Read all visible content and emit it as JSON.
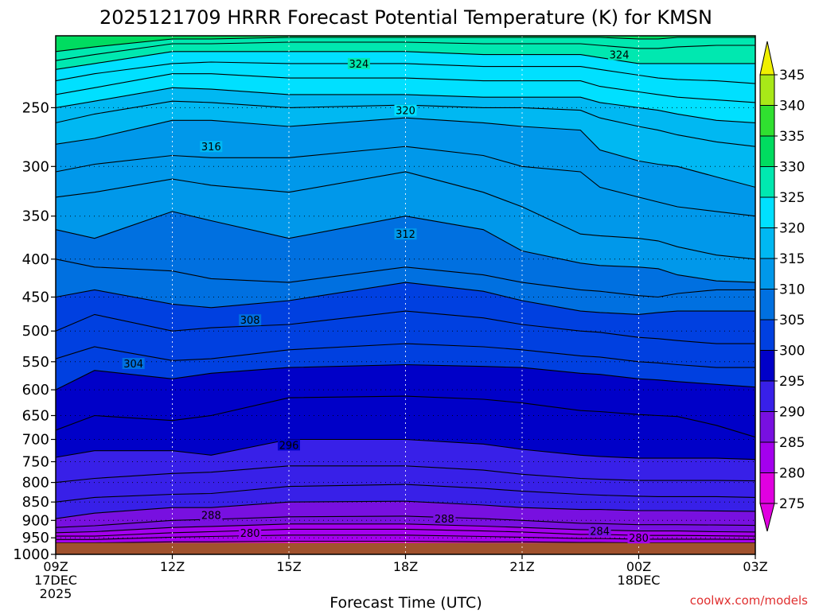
{
  "chart_data": {
    "type": "contour",
    "title": "2025121709 HRRR Forecast Potential Temperature (K) for KMSN",
    "xlabel": "Forecast Time (UTC)",
    "ylabel": "",
    "credit": "coolwx.com/models",
    "x_ticks": [
      {
        "hours": 0,
        "lines": [
          "09Z",
          "17DEC",
          "2025"
        ]
      },
      {
        "hours": 3,
        "lines": [
          "12Z"
        ]
      },
      {
        "hours": 6,
        "lines": [
          "15Z"
        ]
      },
      {
        "hours": 9,
        "lines": [
          "18Z"
        ]
      },
      {
        "hours": 12,
        "lines": [
          "21Z"
        ]
      },
      {
        "hours": 15,
        "lines": [
          "00Z",
          "18DEC"
        ]
      },
      {
        "hours": 18,
        "lines": [
          "03Z"
        ]
      }
    ],
    "xlim": [
      0,
      18
    ],
    "y_axis": "pressure (hPa, inverted)",
    "y_ticks": [
      250,
      300,
      350,
      400,
      450,
      500,
      550,
      600,
      650,
      700,
      750,
      800,
      850,
      900,
      950,
      1000
    ],
    "ylim": [
      1000,
      200
    ],
    "surface_pressure_hPa": 965,
    "colorbar": {
      "levels": [
        275,
        280,
        285,
        290,
        295,
        300,
        305,
        310,
        315,
        320,
        325,
        330,
        335,
        340,
        345
      ],
      "labels": [
        "345",
        "340",
        "335",
        "330",
        "325",
        "320",
        "315",
        "310",
        "305",
        "300",
        "295",
        "290",
        "285",
        "280",
        "275"
      ],
      "colors": [
        "#e000e0",
        "#a400ee",
        "#7810e0",
        "#3820e8",
        "#0000c8",
        "#0040e0",
        "#0070e0",
        "#0098ea",
        "#00b8f2",
        "#00e0ff",
        "#00e8b0",
        "#00dc60",
        "#30e030",
        "#a8e818",
        "#e8f000"
      ]
    },
    "isentropes_K": {
      "hours": [
        0,
        1,
        3,
        4,
        6,
        9,
        11,
        12,
        13.5,
        14,
        15,
        15.5,
        16,
        17,
        18
      ],
      "levels": [
        {
          "theta": 280,
          "p": [
            965,
            965,
            962,
            962,
            960,
            960,
            962,
            962,
            964,
            964,
            965,
            965,
            965,
            965,
            965
          ]
        },
        {
          "theta": 282,
          "p": [
            955,
            955,
            948,
            946,
            942,
            942,
            946,
            948,
            952,
            952,
            954,
            954,
            954,
            954,
            955
          ]
        },
        {
          "theta": 284,
          "p": [
            945,
            945,
            935,
            932,
            925,
            925,
            930,
            933,
            940,
            940,
            943,
            943,
            943,
            944,
            945
          ]
        },
        {
          "theta": 286,
          "p": [
            935,
            932,
            920,
            917,
            910,
            910,
            916,
            920,
            926,
            927,
            930,
            930,
            930,
            932,
            933
          ]
        },
        {
          "theta": 288,
          "p": [
            920,
            915,
            900,
            897,
            890,
            888,
            895,
            900,
            908,
            909,
            912,
            912,
            912,
            913,
            914
          ]
        },
        {
          "theta": 290,
          "p": [
            895,
            880,
            865,
            865,
            850,
            848,
            858,
            865,
            870,
            870,
            873,
            873,
            873,
            874,
            875
          ]
        },
        {
          "theta": 292,
          "p": [
            850,
            838,
            830,
            828,
            810,
            805,
            815,
            822,
            830,
            832,
            835,
            836,
            836,
            836,
            838
          ]
        },
        {
          "theta": 294,
          "p": [
            800,
            790,
            778,
            775,
            760,
            760,
            770,
            780,
            790,
            792,
            795,
            795,
            795,
            795,
            796
          ]
        },
        {
          "theta": 296,
          "p": [
            740,
            725,
            725,
            735,
            700,
            700,
            710,
            722,
            735,
            738,
            742,
            742,
            742,
            742,
            745
          ]
        },
        {
          "theta": 298,
          "p": [
            680,
            650,
            660,
            650,
            615,
            612,
            618,
            625,
            640,
            642,
            648,
            650,
            652,
            670,
            695
          ]
        },
        {
          "theta": 300,
          "p": [
            600,
            565,
            580,
            570,
            560,
            555,
            558,
            560,
            570,
            572,
            580,
            582,
            585,
            590,
            595
          ]
        },
        {
          "theta": 302,
          "p": [
            545,
            525,
            548,
            545,
            530,
            520,
            525,
            530,
            540,
            542,
            550,
            552,
            555,
            560,
            560
          ]
        },
        {
          "theta": 304,
          "p": [
            500,
            475,
            500,
            495,
            490,
            470,
            480,
            490,
            500,
            502,
            510,
            512,
            515,
            520,
            520
          ]
        },
        {
          "theta": 306,
          "p": [
            450,
            440,
            460,
            465,
            455,
            430,
            442,
            455,
            470,
            472,
            475,
            472,
            470,
            470,
            470
          ]
        },
        {
          "theta": 308,
          "p": [
            400,
            410,
            415,
            425,
            430,
            410,
            420,
            430,
            440,
            442,
            448,
            450,
            445,
            440,
            440
          ]
        },
        {
          "theta": 310,
          "p": [
            365,
            375,
            345,
            355,
            375,
            350,
            365,
            390,
            405,
            408,
            410,
            412,
            420,
            428,
            430
          ]
        },
        {
          "theta": 312,
          "p": [
            330,
            325,
            312,
            318,
            325,
            305,
            325,
            340,
            370,
            372,
            375,
            378,
            385,
            395,
            400
          ]
        },
        {
          "theta": 314,
          "p": [
            305,
            298,
            290,
            292,
            292,
            282,
            290,
            300,
            305,
            320,
            330,
            335,
            340,
            345,
            350
          ]
        },
        {
          "theta": 316,
          "p": [
            280,
            275,
            260,
            260,
            265,
            258,
            262,
            265,
            268,
            285,
            295,
            298,
            300,
            310,
            320
          ]
        },
        {
          "theta": 318,
          "p": [
            262,
            255,
            245,
            246,
            250,
            248,
            250,
            250,
            252,
            258,
            265,
            268,
            272,
            278,
            282
          ]
        },
        {
          "theta": 320,
          "p": [
            250,
            245,
            235,
            236,
            240,
            240,
            242,
            242,
            242,
            246,
            250,
            252,
            255,
            260,
            262
          ]
        },
        {
          "theta": 322,
          "p": [
            240,
            235,
            225,
            225,
            228,
            228,
            230,
            230,
            230,
            234,
            238,
            240,
            242,
            244,
            246
          ]
        },
        {
          "theta": 324,
          "p": [
            230,
            225,
            218,
            217,
            218,
            218,
            220,
            220,
            220,
            222,
            226,
            228,
            229,
            230,
            232
          ]
        },
        {
          "theta": 326,
          "p": [
            222,
            218,
            210,
            210,
            210,
            210,
            212,
            212,
            212,
            214,
            218,
            218,
            218,
            218,
            218
          ]
        },
        {
          "theta": 328,
          "p": [
            216,
            212,
            205,
            205,
            204,
            204,
            205,
            205,
            205,
            206,
            208,
            208,
            207,
            206,
            206
          ]
        },
        {
          "theta": 330,
          "p": [
            210,
            207,
            202,
            202,
            201,
            201,
            201,
            201,
            201,
            201,
            202,
            202,
            201,
            201,
            201
          ]
        }
      ]
    },
    "contour_labels": [
      {
        "text": "324",
        "hours": 7.8,
        "p": 218
      },
      {
        "text": "324",
        "hours": 14.5,
        "p": 212
      },
      {
        "text": "320",
        "hours": 9.0,
        "p": 252
      },
      {
        "text": "316",
        "hours": 4.0,
        "p": 282
      },
      {
        "text": "312",
        "hours": 9.0,
        "p": 370
      },
      {
        "text": "308",
        "hours": 5.0,
        "p": 483
      },
      {
        "text": "304",
        "hours": 2.0,
        "p": 553
      },
      {
        "text": "296",
        "hours": 6.0,
        "p": 712
      },
      {
        "text": "288",
        "hours": 4.0,
        "p": 885
      },
      {
        "text": "288",
        "hours": 10.0,
        "p": 895
      },
      {
        "text": "284",
        "hours": 14.0,
        "p": 930
      },
      {
        "text": "280",
        "hours": 5.0,
        "p": 935
      },
      {
        "text": "280",
        "hours": 15.0,
        "p": 950
      }
    ]
  }
}
